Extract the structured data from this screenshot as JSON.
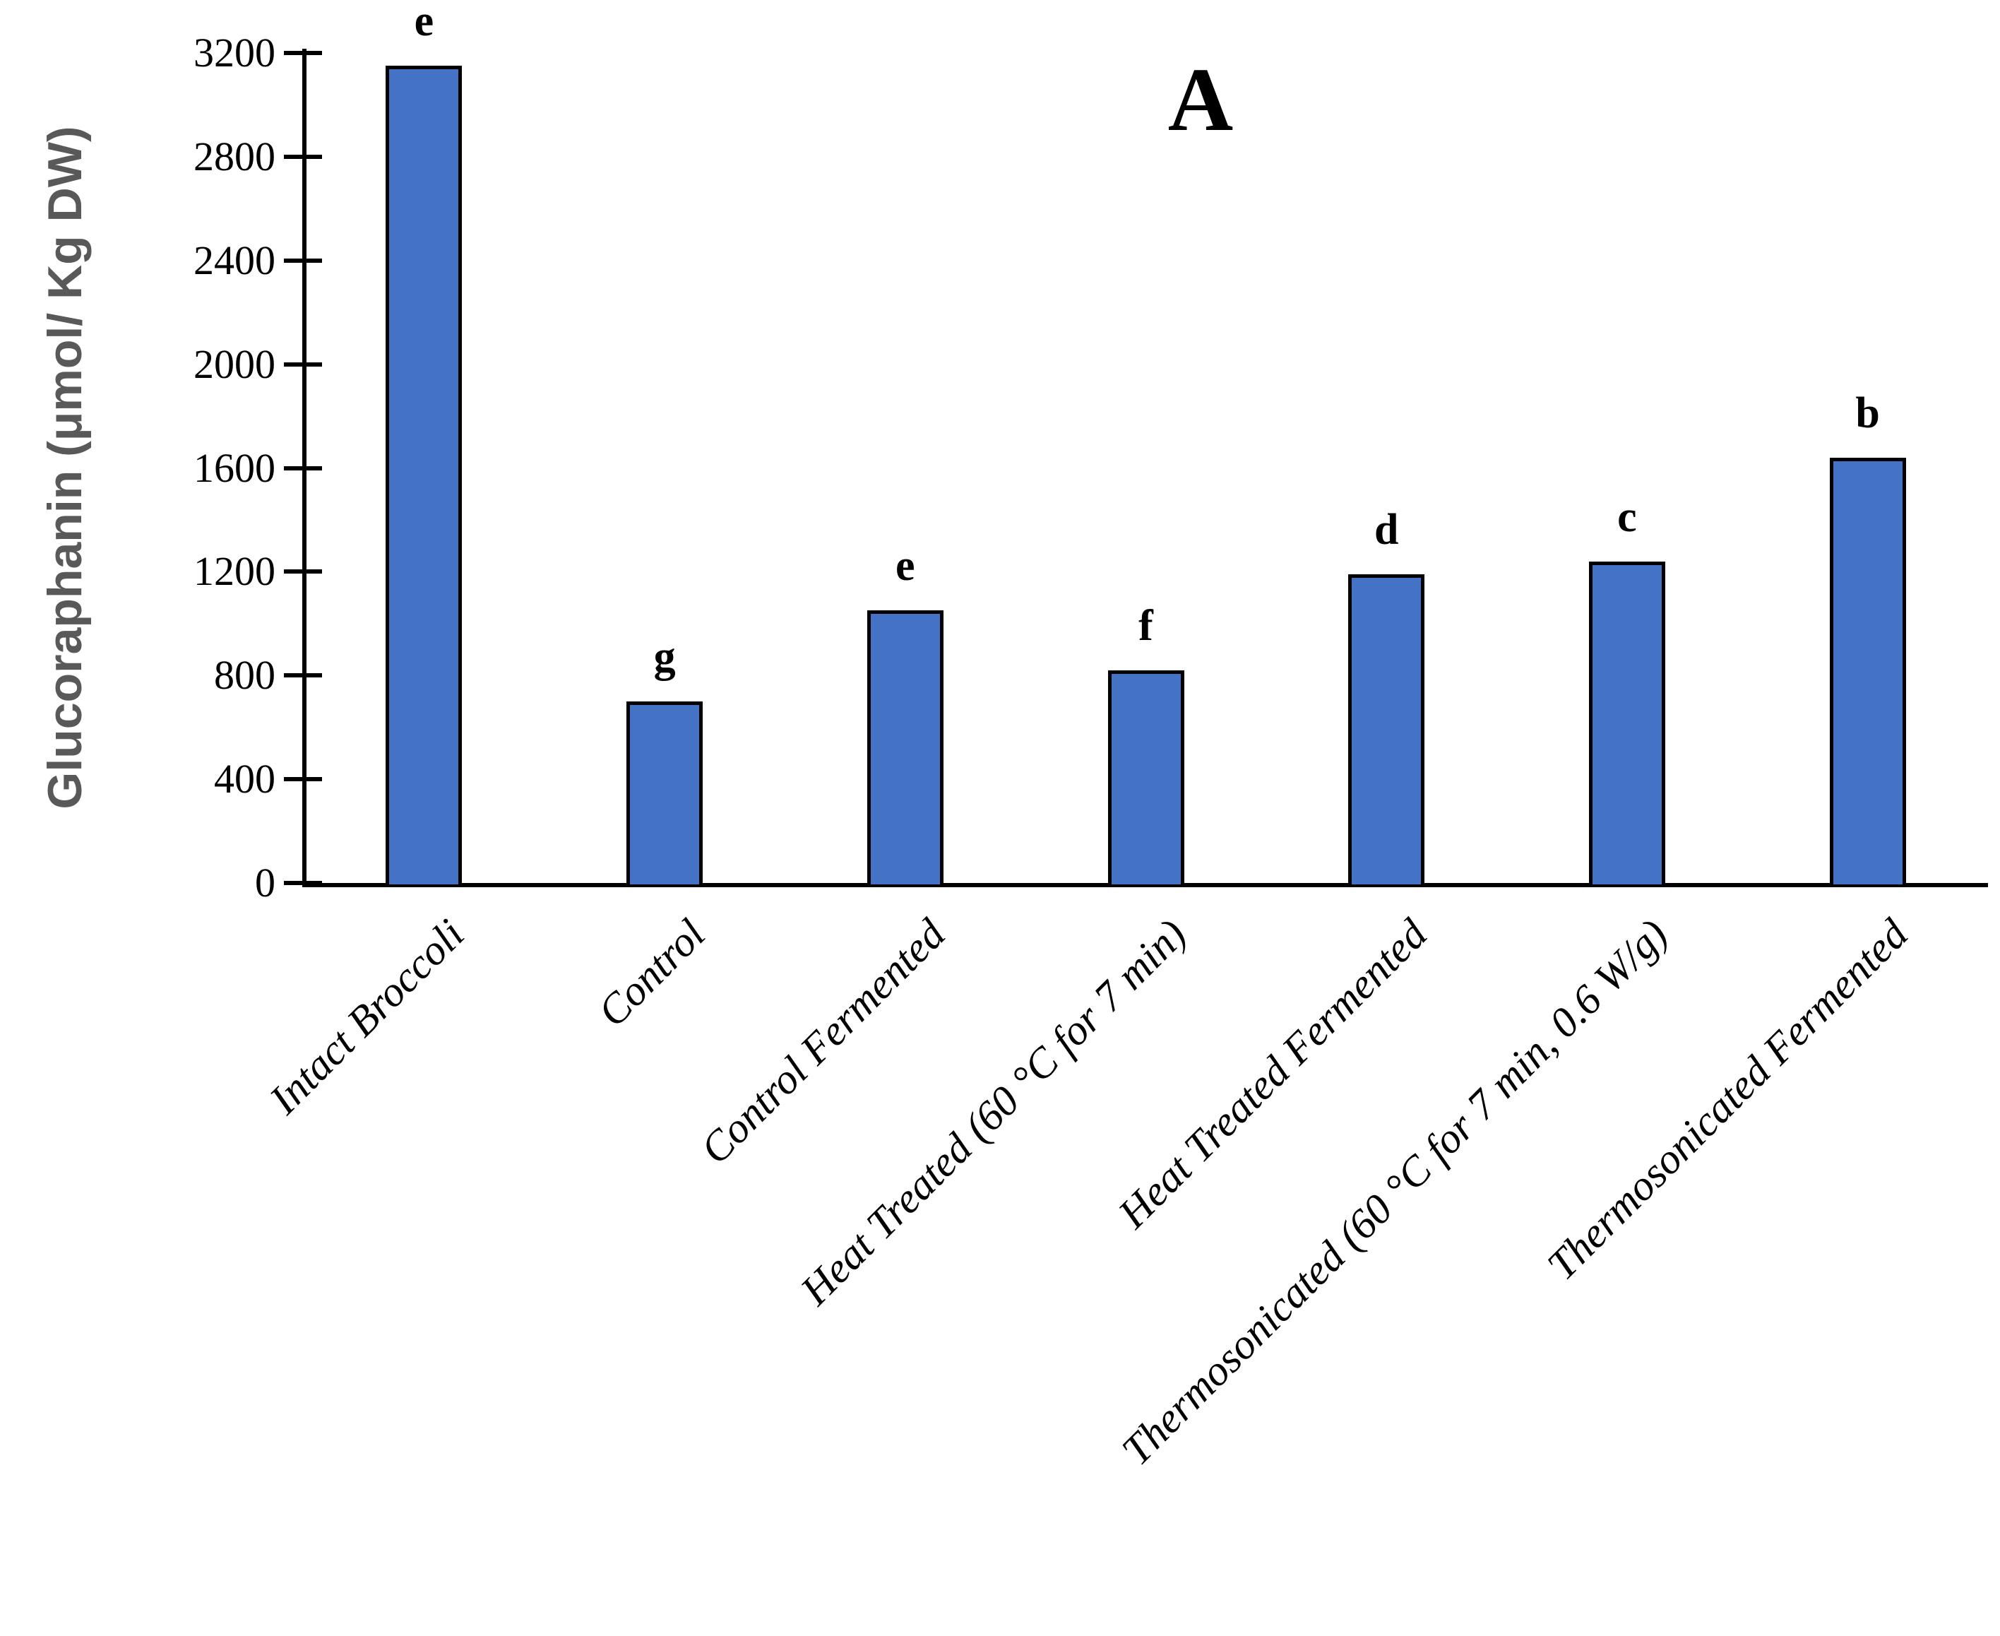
{
  "panel": {
    "label": "A"
  },
  "colors": {
    "bar_fill": "#4472C4",
    "bar_border": "#000000",
    "axis": "#000000",
    "axis_title_text": "#595959",
    "tick_text": "#000000",
    "background": "#FFFFFF"
  },
  "chart_data": {
    "type": "bar",
    "title": "A",
    "xlabel": "",
    "ylabel": "Glucoraphanin (μmol/ Kg DW)",
    "ylim": [
      0,
      3200
    ],
    "ytick_interval": 400,
    "yticks": [
      0,
      400,
      800,
      1200,
      1600,
      2000,
      2400,
      2800,
      3200
    ],
    "grid": false,
    "legend_position": "none",
    "categories": [
      "Intact Broccoli",
      "Control",
      "Control Fermented",
      "Heat Treated (60 °C for 7 min)",
      "Heat Treated Fermented",
      "Thermosonicated (60 °C for 7 min, 0.6 W/g)",
      "Thermosonicated Fermented"
    ],
    "values": [
      3150,
      700,
      1050,
      820,
      1190,
      1240,
      1640
    ],
    "significance_letters": [
      "e",
      "g",
      "e",
      "f",
      "d",
      "c",
      "b"
    ]
  }
}
